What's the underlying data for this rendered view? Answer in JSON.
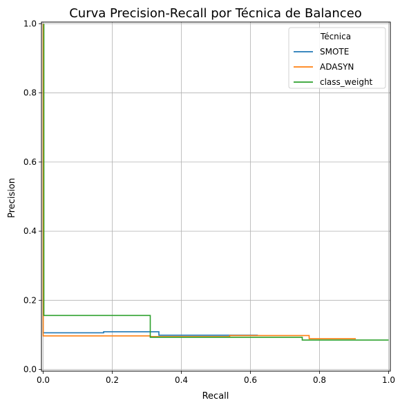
{
  "chart_data": {
    "type": "line",
    "title": "Curva Precision-Recall por Técnica de Balanceo",
    "xlabel": "Recall",
    "ylabel": "Precision",
    "xlim": [
      -0.005,
      1.005
    ],
    "ylim": [
      -0.005,
      1.005
    ],
    "xticks": [
      "0.0",
      "0.2",
      "0.4",
      "0.6",
      "0.8",
      "1.0"
    ],
    "yticks": [
      "0.0",
      "0.2",
      "0.4",
      "0.6",
      "0.8",
      "1.0"
    ],
    "grid": true,
    "legend": {
      "title": "Técnica",
      "placement": "top-right"
    },
    "series": [
      {
        "name": "SMOTE",
        "color": "#1f77b4",
        "x": [
          0.0,
          0.0,
          0.175,
          0.175,
          0.335,
          0.335,
          0.62,
          0.62
        ],
        "y": [
          1.0,
          0.106,
          0.106,
          0.109,
          0.109,
          0.099,
          0.099,
          0.098
        ]
      },
      {
        "name": "ADASYN",
        "color": "#ff7f0e",
        "x": [
          0.0,
          0.0,
          0.31,
          0.31,
          0.54,
          0.54,
          0.77,
          0.77,
          0.905
        ],
        "y": [
          1.0,
          0.097,
          0.097,
          0.095,
          0.095,
          0.098,
          0.098,
          0.089,
          0.089
        ]
      },
      {
        "name": "class_weight",
        "color": "#2ca02c",
        "x": [
          0.002,
          0.002,
          0.31,
          0.31,
          0.75,
          0.75,
          1.0
        ],
        "y": [
          1.0,
          0.156,
          0.156,
          0.093,
          0.093,
          0.085,
          0.085
        ]
      }
    ]
  }
}
